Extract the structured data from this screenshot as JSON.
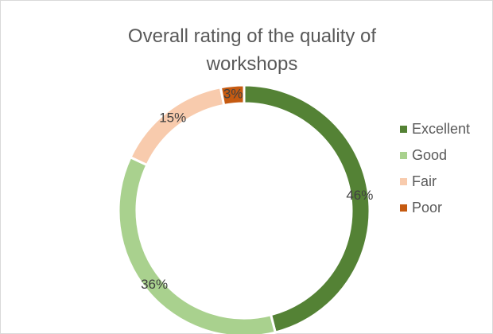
{
  "chart_data": {
    "type": "donut",
    "title": "Overall rating of the quality of workshops",
    "categories": [
      "Excellent",
      "Good",
      "Fair",
      "Poor"
    ],
    "values": [
      46,
      36,
      15,
      3
    ],
    "value_labels": [
      "46%",
      "36%",
      "15%",
      "3%"
    ],
    "colors": [
      "#548235",
      "#a9d18e",
      "#f8cbad",
      "#c55a11"
    ],
    "legend": "right"
  }
}
